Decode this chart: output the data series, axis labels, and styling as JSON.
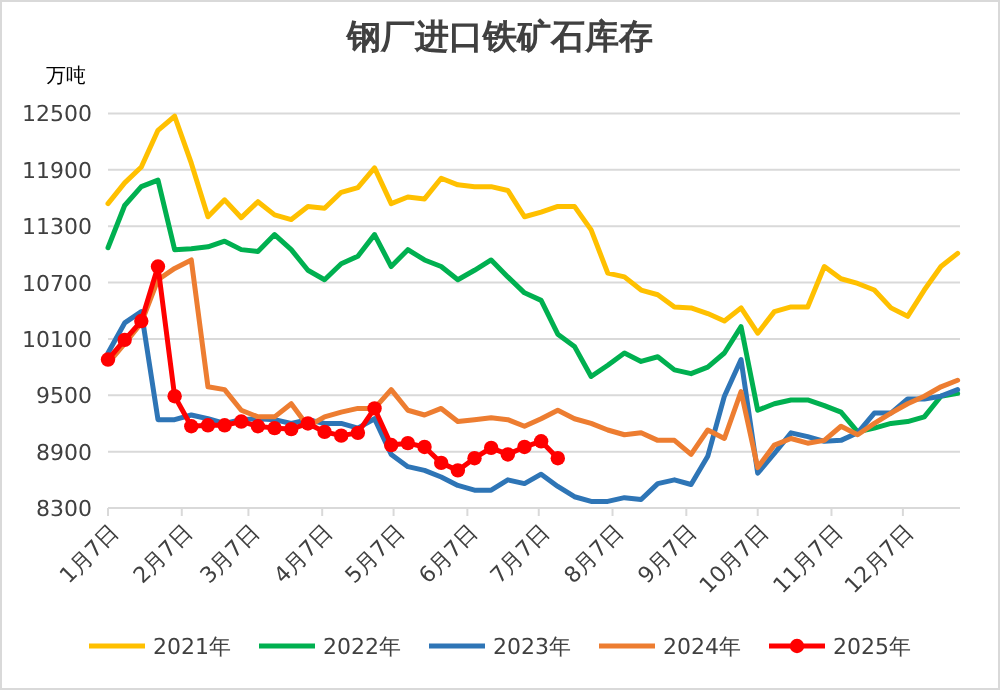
{
  "chart_data": {
    "type": "line",
    "title": "钢厂进口铁矿石库存",
    "ylabel": "万吨",
    "x": [
      "--01-07",
      "--01-14",
      "--01-21",
      "--01-28",
      "--02-04",
      "--02-11",
      "--02-18",
      "--02-25",
      "--03-04",
      "--03-11",
      "--03-18",
      "--03-25",
      "--04-01",
      "--04-08",
      "--04-15",
      "--04-22",
      "--04-29",
      "--05-06",
      "--05-13",
      "--05-20",
      "--05-27",
      "--06-03",
      "--06-10",
      "--06-17",
      "--06-24",
      "--07-01",
      "--07-08",
      "--07-15",
      "--07-22",
      "--07-29",
      "--08-05",
      "--08-12",
      "--08-19",
      "--08-26",
      "--09-02",
      "--09-09",
      "--09-16",
      "--09-23",
      "--09-30",
      "--10-07",
      "--10-14",
      "--10-21",
      "--10-28",
      "--11-04",
      "--11-11",
      "--11-18",
      "--11-25",
      "--12-02",
      "--12-09",
      "--12-16",
      "--12-23",
      "--12-30"
    ],
    "xlim": [
      "--01-07",
      "--12-31"
    ],
    "xticks": [
      {
        "value": "--01-07",
        "label": "1月7日"
      },
      {
        "value": "--02-07",
        "label": "2月7日"
      },
      {
        "value": "--03-07",
        "label": "3月7日"
      },
      {
        "value": "--04-07",
        "label": "4月7日"
      },
      {
        "value": "--05-07",
        "label": "5月7日"
      },
      {
        "value": "--06-07",
        "label": "6月7日"
      },
      {
        "value": "--07-07",
        "label": "7月7日"
      },
      {
        "value": "--08-07",
        "label": "8月7日"
      },
      {
        "value": "--09-07",
        "label": "9月7日"
      },
      {
        "value": "--10-07",
        "label": "10月7日"
      },
      {
        "value": "--11-07",
        "label": "11月7日"
      },
      {
        "value": "--12-07",
        "label": "12月7日"
      }
    ],
    "ylim": [
      8300,
      12500
    ],
    "yticks": [
      8300,
      8900,
      9500,
      10100,
      10700,
      11300,
      11900,
      12500
    ],
    "grid": "y",
    "legend": "bottom",
    "line_style": "solid",
    "series": [
      {
        "name": "2021年",
        "color": "#ffc000",
        "values": [
          11540,
          11760,
          11930,
          12320,
          12470,
          11970,
          11400,
          11580,
          11390,
          11560,
          11420,
          11370,
          11510,
          11490,
          11660,
          11710,
          11920,
          11540,
          11610,
          11590,
          11810,
          11740,
          11720,
          11720,
          11680,
          11400,
          11450,
          11510,
          11510,
          11260,
          10800,
          10760,
          10620,
          10570,
          10440,
          10430,
          10370,
          10290,
          10430,
          10160,
          10390,
          10440,
          10440,
          10870,
          10740,
          10690,
          10620,
          10430,
          10340,
          10620,
          10870,
          11010
        ]
      },
      {
        "name": "2022年",
        "color": "#00b050",
        "values": [
          11070,
          11520,
          11720,
          11790,
          11050,
          11060,
          11080,
          11140,
          11050,
          11030,
          11210,
          11050,
          10830,
          10730,
          10900,
          10980,
          11210,
          10870,
          11050,
          10940,
          10870,
          10730,
          10830,
          10940,
          10760,
          10590,
          10510,
          10150,
          10020,
          9700,
          9820,
          9950,
          9860,
          9910,
          9770,
          9730,
          9800,
          9950,
          10230,
          9340,
          9410,
          9450,
          9450,
          9390,
          9320,
          9110,
          9150,
          9200,
          9220,
          9270,
          9490,
          9520
        ]
      },
      {
        "name": "2023年",
        "color": "#2e75b6",
        "values": [
          9950,
          10270,
          10390,
          9240,
          9240,
          9290,
          9250,
          9200,
          9240,
          9250,
          9240,
          9200,
          9240,
          9200,
          9200,
          9150,
          9250,
          8870,
          8740,
          8700,
          8630,
          8540,
          8490,
          8490,
          8600,
          8560,
          8660,
          8530,
          8420,
          8370,
          8370,
          8410,
          8390,
          8560,
          8600,
          8550,
          8850,
          9490,
          9880,
          8670,
          8880,
          9100,
          9060,
          9010,
          9020,
          9100,
          9310,
          9310,
          9460,
          9460,
          9490,
          9560
        ]
      },
      {
        "name": "2024年",
        "color": "#ed7d31",
        "values": [
          9840,
          10050,
          10270,
          10730,
          10850,
          10940,
          9590,
          9560,
          9340,
          9270,
          9270,
          9410,
          9170,
          9270,
          9320,
          9360,
          9360,
          9560,
          9340,
          9290,
          9360,
          9220,
          9240,
          9260,
          9240,
          9170,
          9250,
          9340,
          9250,
          9200,
          9130,
          9080,
          9100,
          9020,
          9020,
          8870,
          9130,
          9040,
          9540,
          8730,
          8970,
          9040,
          8990,
          9020,
          9170,
          9080,
          9200,
          9310,
          9410,
          9490,
          9590,
          9660
        ]
      },
      {
        "name": "2025年",
        "color": "#ff0000",
        "marker": "circle",
        "x": [
          "--01-07",
          "--01-14",
          "--01-21",
          "--01-28",
          "--02-04",
          "--02-11",
          "--02-18",
          "--02-25",
          "--03-04",
          "--03-11",
          "--03-18",
          "--03-25",
          "--04-01",
          "--04-08",
          "--04-15",
          "--04-22",
          "--04-29",
          "--05-06",
          "--05-13",
          "--05-20",
          "--05-27",
          "--06-03",
          "--06-10",
          "--06-17",
          "--06-24",
          "--07-01",
          "--07-08",
          "--07-15"
        ],
        "values": [
          9880,
          10090,
          10290,
          10870,
          9490,
          9170,
          9180,
          9180,
          9220,
          9170,
          9150,
          9140,
          9200,
          9110,
          9070,
          9100,
          9360,
          8970,
          8990,
          8950,
          8780,
          8700,
          8830,
          8940,
          8870,
          8950,
          9010,
          8830
        ]
      }
    ]
  }
}
